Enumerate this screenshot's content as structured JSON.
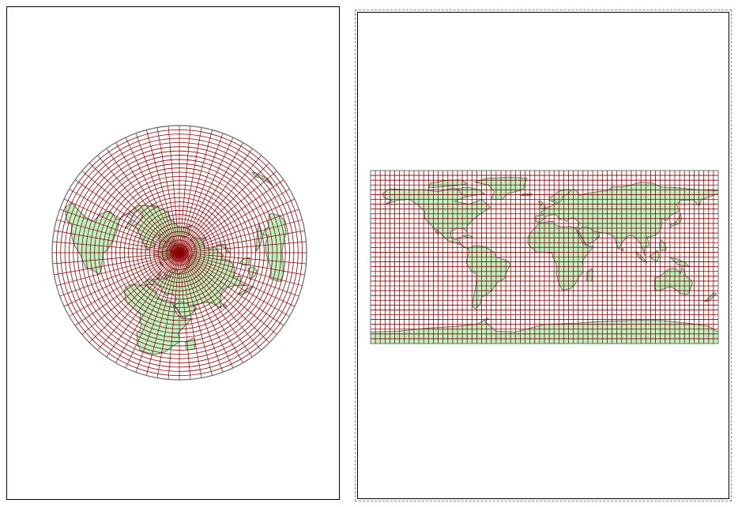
{
  "layout_views": [
    {
      "id": "polar-view",
      "projection": "azimuthal-north-polar",
      "graticule_step_deg": 5
    },
    {
      "id": "world-view",
      "projection": "equirectangular",
      "graticule_step_deg": 5
    }
  ],
  "colors": {
    "land_fill": "#b8f5c4",
    "land_stroke": "#6a6a6a",
    "graticule": "#8b0000",
    "frame_border": "#000000",
    "frame_dashed": "#8a8a8a",
    "background": "#ffffff"
  }
}
